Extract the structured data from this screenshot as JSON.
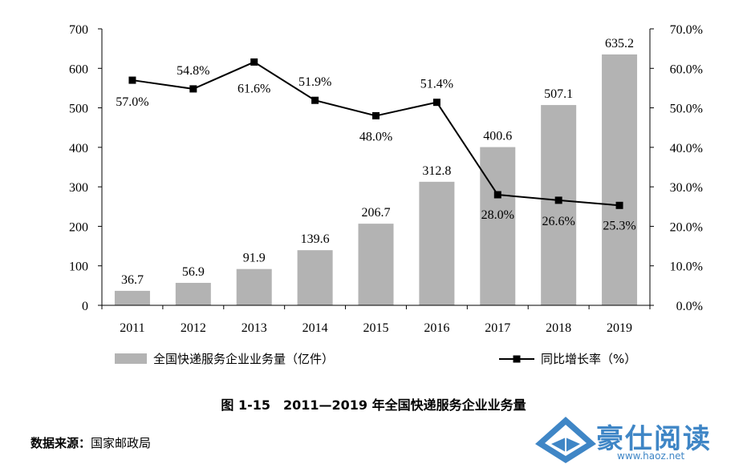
{
  "chart_data": {
    "type": "bar",
    "categories": [
      "2011",
      "2012",
      "2013",
      "2014",
      "2015",
      "2016",
      "2017",
      "2018",
      "2019"
    ],
    "series": [
      {
        "name": "全国快递服务企业业务量（亿件）",
        "type": "bar",
        "axis": "left",
        "values": [
          36.7,
          56.9,
          91.9,
          139.6,
          206.7,
          312.8,
          400.6,
          507.1,
          635.2
        ],
        "labels": [
          "36.7",
          "56.9",
          "91.9",
          "139.6",
          "206.7",
          "312.8",
          "400.6",
          "507.1",
          "635.2"
        ],
        "color": "#b3b3b3"
      },
      {
        "name": "同比增长率（%）",
        "type": "line",
        "axis": "right",
        "values": [
          57.0,
          54.8,
          61.6,
          51.9,
          48.0,
          51.4,
          28.0,
          26.6,
          25.3
        ],
        "labels": [
          "57.0%",
          "54.8%",
          "61.6%",
          "51.9%",
          "48.0%",
          "51.4%",
          "28.0%",
          "26.6%",
          "25.3%"
        ],
        "color": "#000000"
      }
    ],
    "y_left": {
      "ylim": [
        0,
        700
      ],
      "ticks": [
        "0",
        "100",
        "200",
        "300",
        "400",
        "500",
        "600",
        "700"
      ]
    },
    "y_right": {
      "ylim": [
        0,
        70
      ],
      "ticks": [
        "0.0%",
        "10.0%",
        "20.0%",
        "30.0%",
        "40.0%",
        "50.0%",
        "60.0%",
        "70.0%"
      ]
    },
    "grid": false,
    "legend_position": "bottom"
  },
  "caption": "图 1-15　2011—2019 年全国快递服务企业业务量",
  "source": {
    "label": "数据来源：",
    "value": "国家邮政局"
  },
  "watermark": {
    "text": "豪仕阅读",
    "url": "www.haoz.net",
    "color": "#3f86c6"
  }
}
